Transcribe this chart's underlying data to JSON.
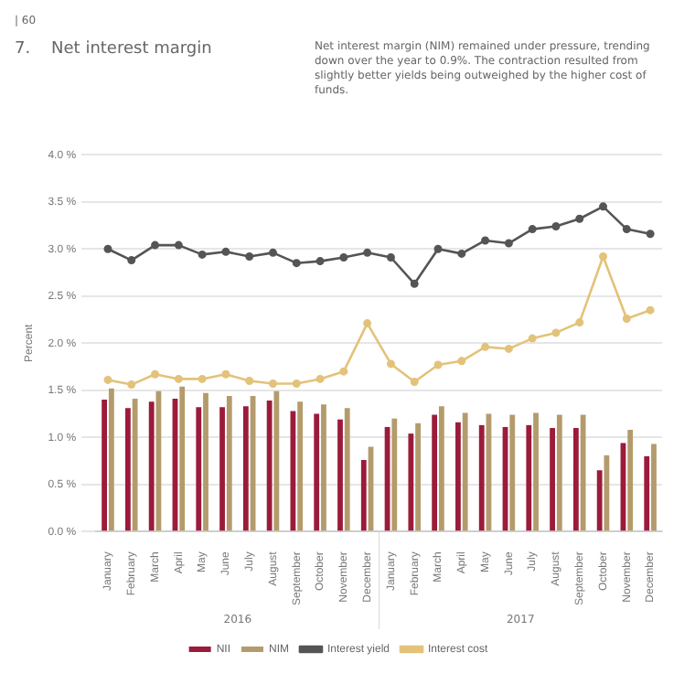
{
  "chart_data": {
    "type": "bar",
    "title": "7.    Net interest margin",
    "subtitle": "Net interest margin (NIM) remained under pressure, trending down over the year to 0.9%. The contraction resulted from slightly better yields being outweighed by the higher cost of funds.",
    "ylabel": "Percent",
    "annotations": [
      "| 60",
      "2016",
      "2017"
    ],
    "categories": [
      "January",
      "February",
      "March",
      "April",
      "May",
      "June",
      "July",
      "August",
      "September",
      "October",
      "November",
      "December",
      "January",
      "February",
      "March",
      "April",
      "May",
      "June",
      "July",
      "August",
      "September",
      "October",
      "November",
      "December"
    ],
    "series": [
      {
        "name": "NII",
        "color": "#9b1b3a",
        "values": [
          1.4,
          1.31,
          1.38,
          1.41,
          1.32,
          1.32,
          1.33,
          1.39,
          1.28,
          1.25,
          1.19,
          0.76,
          1.11,
          1.04,
          1.24,
          1.16,
          1.13,
          1.11,
          1.13,
          1.1,
          1.1,
          0.65,
          0.94,
          0.8
        ]
      },
      {
        "name": "NIM",
        "color": "#b39b6c",
        "values": [
          1.52,
          1.41,
          1.49,
          1.54,
          1.47,
          1.44,
          1.44,
          1.49,
          1.38,
          1.35,
          1.31,
          0.9,
          1.2,
          1.15,
          1.33,
          1.26,
          1.25,
          1.24,
          1.26,
          1.24,
          1.24,
          0.81,
          1.08,
          0.93
        ]
      },
      {
        "name": "Interest yield",
        "type": "line",
        "color": "#555555",
        "values": [
          3.0,
          2.88,
          3.04,
          3.04,
          2.94,
          2.97,
          2.92,
          2.96,
          2.85,
          2.87,
          2.91,
          2.96,
          2.91,
          2.63,
          3.0,
          2.95,
          3.09,
          3.06,
          3.21,
          3.24,
          3.32,
          3.45,
          3.21,
          3.16
        ]
      },
      {
        "name": "Interest cost",
        "type": "line",
        "color": "#e3c27a",
        "values": [
          1.61,
          1.56,
          1.67,
          1.62,
          1.62,
          1.67,
          1.6,
          1.57,
          1.57,
          1.62,
          1.7,
          2.21,
          1.78,
          1.59,
          1.77,
          1.81,
          1.96,
          1.94,
          2.05,
          2.11,
          2.22,
          2.92,
          2.26,
          2.35
        ]
      }
    ],
    "ylim": [
      0,
      4
    ],
    "yticks": [
      {
        "value": 0,
        "label": "0.0 %"
      },
      {
        "value": 0.5,
        "label": "0.5 %"
      },
      {
        "value": 1,
        "label": "1.0 %"
      },
      {
        "value": 1.5,
        "label": "1.5 %"
      },
      {
        "value": 2,
        "label": "2.0 %"
      },
      {
        "value": 2.5,
        "label": "2.5 %"
      },
      {
        "value": 3,
        "label": "3.0 %"
      },
      {
        "value": 3.5,
        "label": "3.5 %"
      },
      {
        "value": 4,
        "label": "4.0 %"
      }
    ],
    "grid": "y",
    "legend": "bottom",
    "marker": "circle",
    "line_style": "solid"
  }
}
